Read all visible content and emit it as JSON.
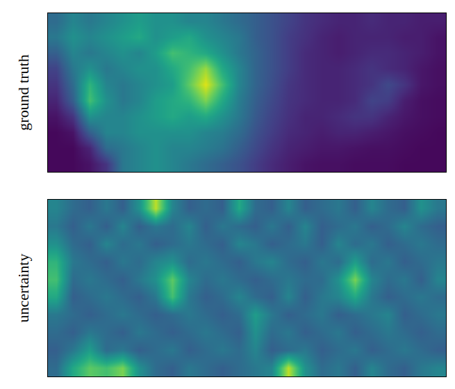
{
  "chart_data": [
    {
      "type": "heatmap",
      "ylabel": "ground truth",
      "color": "Viridis",
      "zlim": [
        0,
        1
      ],
      "tick_labels": false,
      "cells": [
        [
          0.35,
          0.45,
          0.4,
          0.45,
          0.5,
          0.55,
          0.5,
          0.5,
          0.45,
          0.45,
          0.4,
          0.35,
          0.3,
          0.25,
          0.2,
          0.15,
          0.12,
          0.1,
          0.1,
          0.12,
          0.1,
          0.1,
          0.08,
          0.08
        ],
        [
          0.4,
          0.5,
          0.45,
          0.5,
          0.55,
          0.6,
          0.5,
          0.55,
          0.6,
          0.5,
          0.45,
          0.4,
          0.3,
          0.25,
          0.18,
          0.14,
          0.1,
          0.08,
          0.1,
          0.1,
          0.1,
          0.08,
          0.08,
          0.05
        ],
        [
          0.3,
          0.45,
          0.4,
          0.45,
          0.5,
          0.45,
          0.55,
          0.7,
          0.65,
          0.6,
          0.5,
          0.4,
          0.32,
          0.25,
          0.18,
          0.12,
          0.1,
          0.08,
          0.1,
          0.12,
          0.12,
          0.1,
          0.08,
          0.05
        ],
        [
          0.2,
          0.4,
          0.5,
          0.4,
          0.45,
          0.5,
          0.5,
          0.6,
          0.7,
          0.85,
          0.6,
          0.45,
          0.32,
          0.25,
          0.18,
          0.12,
          0.1,
          0.1,
          0.12,
          0.15,
          0.12,
          0.1,
          0.06,
          0.04
        ],
        [
          0.15,
          0.35,
          0.65,
          0.45,
          0.4,
          0.45,
          0.5,
          0.55,
          0.75,
          0.95,
          0.7,
          0.45,
          0.32,
          0.24,
          0.16,
          0.12,
          0.1,
          0.1,
          0.12,
          0.15,
          0.22,
          0.15,
          0.06,
          0.04
        ],
        [
          0.1,
          0.3,
          0.7,
          0.5,
          0.4,
          0.45,
          0.55,
          0.6,
          0.65,
          0.8,
          0.6,
          0.42,
          0.3,
          0.22,
          0.15,
          0.12,
          0.1,
          0.1,
          0.12,
          0.2,
          0.18,
          0.08,
          0.04,
          0.03
        ],
        [
          0.05,
          0.15,
          0.5,
          0.45,
          0.45,
          0.5,
          0.55,
          0.6,
          0.55,
          0.6,
          0.5,
          0.4,
          0.28,
          0.2,
          0.14,
          0.1,
          0.1,
          0.12,
          0.15,
          0.15,
          0.1,
          0.06,
          0.04,
          0.03
        ],
        [
          0.02,
          0.05,
          0.3,
          0.45,
          0.45,
          0.5,
          0.5,
          0.5,
          0.5,
          0.45,
          0.42,
          0.35,
          0.25,
          0.18,
          0.12,
          0.1,
          0.08,
          0.1,
          0.1,
          0.08,
          0.06,
          0.04,
          0.03,
          0.02
        ],
        [
          0.02,
          0.02,
          0.1,
          0.35,
          0.4,
          0.45,
          0.5,
          0.45,
          0.45,
          0.42,
          0.38,
          0.3,
          0.22,
          0.15,
          0.1,
          0.08,
          0.06,
          0.06,
          0.05,
          0.04,
          0.04,
          0.03,
          0.02,
          0.02
        ],
        [
          0.02,
          0.02,
          0.05,
          0.15,
          0.4,
          0.45,
          0.5,
          0.45,
          0.4,
          0.35,
          0.3,
          0.25,
          0.18,
          0.12,
          0.08,
          0.05,
          0.04,
          0.04,
          0.03,
          0.03,
          0.03,
          0.02,
          0.02,
          0.02
        ]
      ]
    },
    {
      "type": "heatmap",
      "ylabel": "uncertainty",
      "color": "Viridis",
      "zlim": [
        0,
        1
      ],
      "tick_labels": false,
      "cells": [
        [
          0.45,
          0.35,
          0.3,
          0.4,
          0.3,
          0.5,
          0.9,
          0.45,
          0.3,
          0.35,
          0.3,
          0.6,
          0.35,
          0.3,
          0.45,
          0.3,
          0.35,
          0.4,
          0.3,
          0.45,
          0.35,
          0.3,
          0.5,
          0.4
        ],
        [
          0.4,
          0.3,
          0.4,
          0.3,
          0.45,
          0.3,
          0.4,
          0.35,
          0.45,
          0.3,
          0.4,
          0.35,
          0.3,
          0.4,
          0.3,
          0.45,
          0.3,
          0.35,
          0.4,
          0.3,
          0.35,
          0.45,
          0.35,
          0.3
        ],
        [
          0.5,
          0.35,
          0.3,
          0.45,
          0.35,
          0.4,
          0.3,
          0.35,
          0.4,
          0.35,
          0.3,
          0.45,
          0.4,
          0.3,
          0.35,
          0.4,
          0.3,
          0.45,
          0.35,
          0.4,
          0.3,
          0.35,
          0.4,
          0.35
        ],
        [
          0.65,
          0.4,
          0.35,
          0.3,
          0.4,
          0.35,
          0.45,
          0.5,
          0.35,
          0.4,
          0.35,
          0.3,
          0.4,
          0.45,
          0.35,
          0.3,
          0.4,
          0.35,
          0.55,
          0.35,
          0.4,
          0.3,
          0.35,
          0.4
        ],
        [
          0.7,
          0.35,
          0.4,
          0.35,
          0.3,
          0.4,
          0.5,
          0.75,
          0.45,
          0.35,
          0.4,
          0.35,
          0.3,
          0.35,
          0.4,
          0.35,
          0.35,
          0.5,
          0.8,
          0.45,
          0.35,
          0.4,
          0.3,
          0.45
        ],
        [
          0.6,
          0.3,
          0.35,
          0.4,
          0.35,
          0.3,
          0.4,
          0.7,
          0.4,
          0.3,
          0.35,
          0.45,
          0.35,
          0.3,
          0.45,
          0.3,
          0.4,
          0.45,
          0.6,
          0.4,
          0.3,
          0.35,
          0.4,
          0.35
        ],
        [
          0.4,
          0.35,
          0.3,
          0.35,
          0.4,
          0.35,
          0.3,
          0.35,
          0.4,
          0.35,
          0.3,
          0.35,
          0.55,
          0.4,
          0.3,
          0.35,
          0.4,
          0.3,
          0.35,
          0.4,
          0.45,
          0.3,
          0.35,
          0.4
        ],
        [
          0.35,
          0.3,
          0.4,
          0.35,
          0.3,
          0.4,
          0.35,
          0.3,
          0.35,
          0.4,
          0.35,
          0.3,
          0.5,
          0.35,
          0.4,
          0.3,
          0.35,
          0.4,
          0.3,
          0.35,
          0.4,
          0.35,
          0.3,
          0.35
        ],
        [
          0.3,
          0.4,
          0.55,
          0.35,
          0.4,
          0.3,
          0.35,
          0.4,
          0.3,
          0.35,
          0.4,
          0.35,
          0.45,
          0.3,
          0.35,
          0.4,
          0.3,
          0.35,
          0.4,
          0.3,
          0.35,
          0.4,
          0.35,
          0.3
        ],
        [
          0.35,
          0.6,
          0.75,
          0.7,
          0.8,
          0.5,
          0.35,
          0.3,
          0.4,
          0.35,
          0.3,
          0.35,
          0.4,
          0.45,
          0.9,
          0.5,
          0.35,
          0.4,
          0.3,
          0.45,
          0.35,
          0.3,
          0.4,
          0.45
        ]
      ]
    }
  ]
}
